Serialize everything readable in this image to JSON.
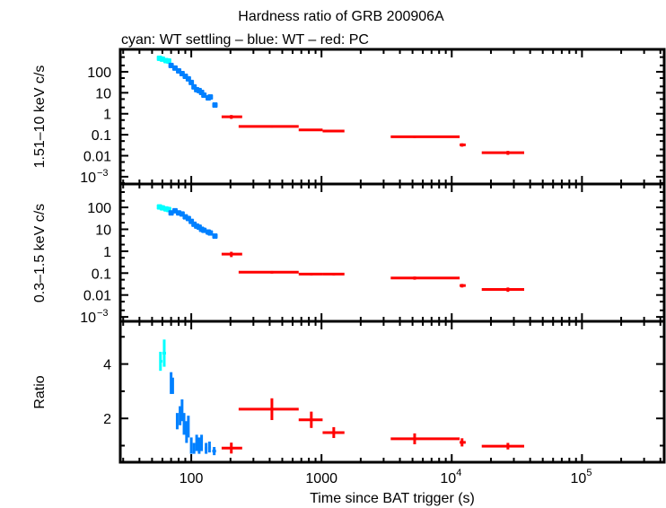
{
  "chart_data": [
    {
      "type": "scatter",
      "title": "Hardness ratio of GRB 200906A",
      "subtitle": "cyan: WT settling – blue: WT – red: PC",
      "ylabel": "1.51–10 keV c/s",
      "yscale": "log",
      "ylim": [
        0.00045,
        1170
      ],
      "yticks": [
        {
          "v": 100,
          "l": "100"
        },
        {
          "v": 10,
          "l": "10"
        },
        {
          "v": 1,
          "l": "1"
        },
        {
          "v": 0.1,
          "l": "0.1"
        },
        {
          "v": 0.01,
          "l": "0.01"
        },
        {
          "v": 0.001,
          "l": "10",
          "sup": "−3"
        }
      ],
      "series": [
        {
          "color": "#00ffff",
          "points": [
            [
              57,
              440
            ],
            [
              60,
              400
            ],
            [
              64,
              340
            ],
            [
              67,
              325
            ]
          ]
        },
        {
          "color": "#0080ff",
          "points": [
            [
              70,
              200
            ],
            [
              75,
              150
            ],
            [
              80,
              110
            ],
            [
              85,
              82
            ],
            [
              90,
              61
            ],
            [
              95,
              46
            ],
            [
              100,
              31
            ],
            [
              105,
              19
            ],
            [
              110,
              14
            ],
            [
              115,
              12.7
            ],
            [
              120,
              10.4
            ],
            [
              125,
              7.7
            ],
            [
              135,
              5.7
            ],
            [
              140,
              6.3
            ],
            [
              152,
              2.6
            ]
          ]
        },
        {
          "color": "#ff0000",
          "points": [
            [
              203,
              0.72,
              171,
              246,
              0.15
            ],
            [
              416,
              0.25,
              231,
              668,
              0.03
            ],
            [
              835,
              0.17,
              668,
              1020,
              0.02
            ],
            [
              1242,
              0.15,
              1020,
              1500,
              0.02
            ],
            [
              5190,
              0.08,
              3400,
              11500,
              0.01
            ],
            [
              12000,
              0.033,
              11500,
              12800,
              0.006
            ],
            [
              27000,
              0.014,
              17000,
              36000,
              0.003
            ]
          ]
        }
      ]
    },
    {
      "type": "scatter",
      "ylabel": "0.3–1.5 keV c/s",
      "yscale": "log",
      "ylim": [
        0.00063,
        1170
      ],
      "yticks": [
        {
          "v": 100,
          "l": "100"
        },
        {
          "v": 10,
          "l": "10"
        },
        {
          "v": 1,
          "l": "1"
        },
        {
          "v": 0.1,
          "l": "0.1"
        },
        {
          "v": 0.01,
          "l": "0.01"
        },
        {
          "v": 0.001,
          "l": "10",
          "sup": "−3"
        }
      ],
      "series": [
        {
          "color": "#00ffff",
          "points": [
            [
              57,
              105
            ],
            [
              60,
              95
            ],
            [
              64,
              85
            ],
            [
              67,
              80
            ]
          ]
        },
        {
          "color": "#0080ff",
          "points": [
            [
              70,
              56
            ],
            [
              75,
              70
            ],
            [
              80,
              56
            ],
            [
              85,
              50
            ],
            [
              90,
              37
            ],
            [
              95,
              31
            ],
            [
              100,
              23
            ],
            [
              105,
              17
            ],
            [
              110,
              14
            ],
            [
              115,
              12.5
            ],
            [
              120,
              10
            ],
            [
              125,
              9
            ],
            [
              135,
              7.5
            ],
            [
              140,
              6.8
            ],
            [
              152,
              4.9
            ]
          ]
        },
        {
          "color": "#ff0000",
          "points": [
            [
              203,
              0.74,
              171,
              246,
              0.2
            ],
            [
              416,
              0.11,
              231,
              668,
              0.015
            ],
            [
              835,
              0.09,
              668,
              1020,
              0.012
            ],
            [
              1242,
              0.09,
              1020,
              1500,
              0.012
            ],
            [
              5190,
              0.06,
              3400,
              11500,
              0.01
            ],
            [
              12000,
              0.027,
              11500,
              12800,
              0.005
            ],
            [
              27000,
              0.018,
              17000,
              36000,
              0.004
            ]
          ]
        }
      ]
    },
    {
      "type": "scatter",
      "ylabel": "Ratio",
      "xlabel": "Time since BAT trigger (s)",
      "yscale": "linear",
      "ylim": [
        0.39,
        5.57
      ],
      "yticks": [
        {
          "v": 2,
          "l": "2"
        },
        {
          "v": 4,
          "l": "4"
        }
      ],
      "yminor": [
        1,
        3,
        5
      ],
      "xscale": "log",
      "xlim": [
        28.5,
        428000
      ],
      "xticks": [
        {
          "v": 100,
          "l": "100"
        },
        {
          "v": 1000,
          "l": "1000"
        },
        {
          "v": 10000,
          "l": "10",
          "sup": "4"
        },
        {
          "v": 100000,
          "l": "10",
          "sup": "5"
        }
      ],
      "series": [
        {
          "color": "#00ffff",
          "points": [
            [
              58,
              4.1,
              57,
              60,
              0.35
            ],
            [
              62,
              4.4,
              60,
              64,
              0.5
            ]
          ]
        },
        {
          "color": "#0080ff",
          "points": [
            [
              70,
              3.3,
              69,
              71,
              0.4
            ],
            [
              72,
              3.2,
              71,
              73,
              0.3
            ],
            [
              78,
              1.9,
              77,
              79,
              0.3
            ],
            [
              82,
              2.1,
              81,
              83,
              0.35
            ],
            [
              85,
              2.3,
              84,
              86,
              0.4
            ],
            [
              88,
              1.8,
              87,
              89,
              0.4
            ],
            [
              92,
              1.5,
              91,
              93,
              0.4
            ],
            [
              95,
              1.7,
              94,
              96,
              0.4
            ],
            [
              100,
              1.0,
              99,
              101,
              0.3
            ],
            [
              105,
              0.9,
              104,
              106,
              0.2
            ],
            [
              110,
              1.1,
              109,
              111,
              0.3
            ],
            [
              115,
              1.0,
              114,
              116,
              0.3
            ],
            [
              120,
              1.1,
              119,
              121,
              0.3
            ],
            [
              130,
              0.9,
              127,
              133,
              0.2
            ],
            [
              138,
              0.95,
              135,
              141,
              0.2
            ],
            [
              150,
              0.8,
              145,
              155,
              0.15
            ]
          ]
        },
        {
          "color": "#ff0000",
          "points": [
            [
              203,
              0.91,
              171,
              246,
              0.2
            ],
            [
              416,
              2.34,
              231,
              668,
              0.4
            ],
            [
              835,
              1.95,
              668,
              1020,
              0.3
            ],
            [
              1242,
              1.48,
              1020,
              1500,
              0.2
            ],
            [
              5190,
              1.25,
              3400,
              11500,
              0.2
            ],
            [
              12000,
              1.12,
              11500,
              12800,
              0.15
            ],
            [
              27000,
              0.98,
              17000,
              36000,
              0.12
            ]
          ]
        }
      ]
    }
  ]
}
